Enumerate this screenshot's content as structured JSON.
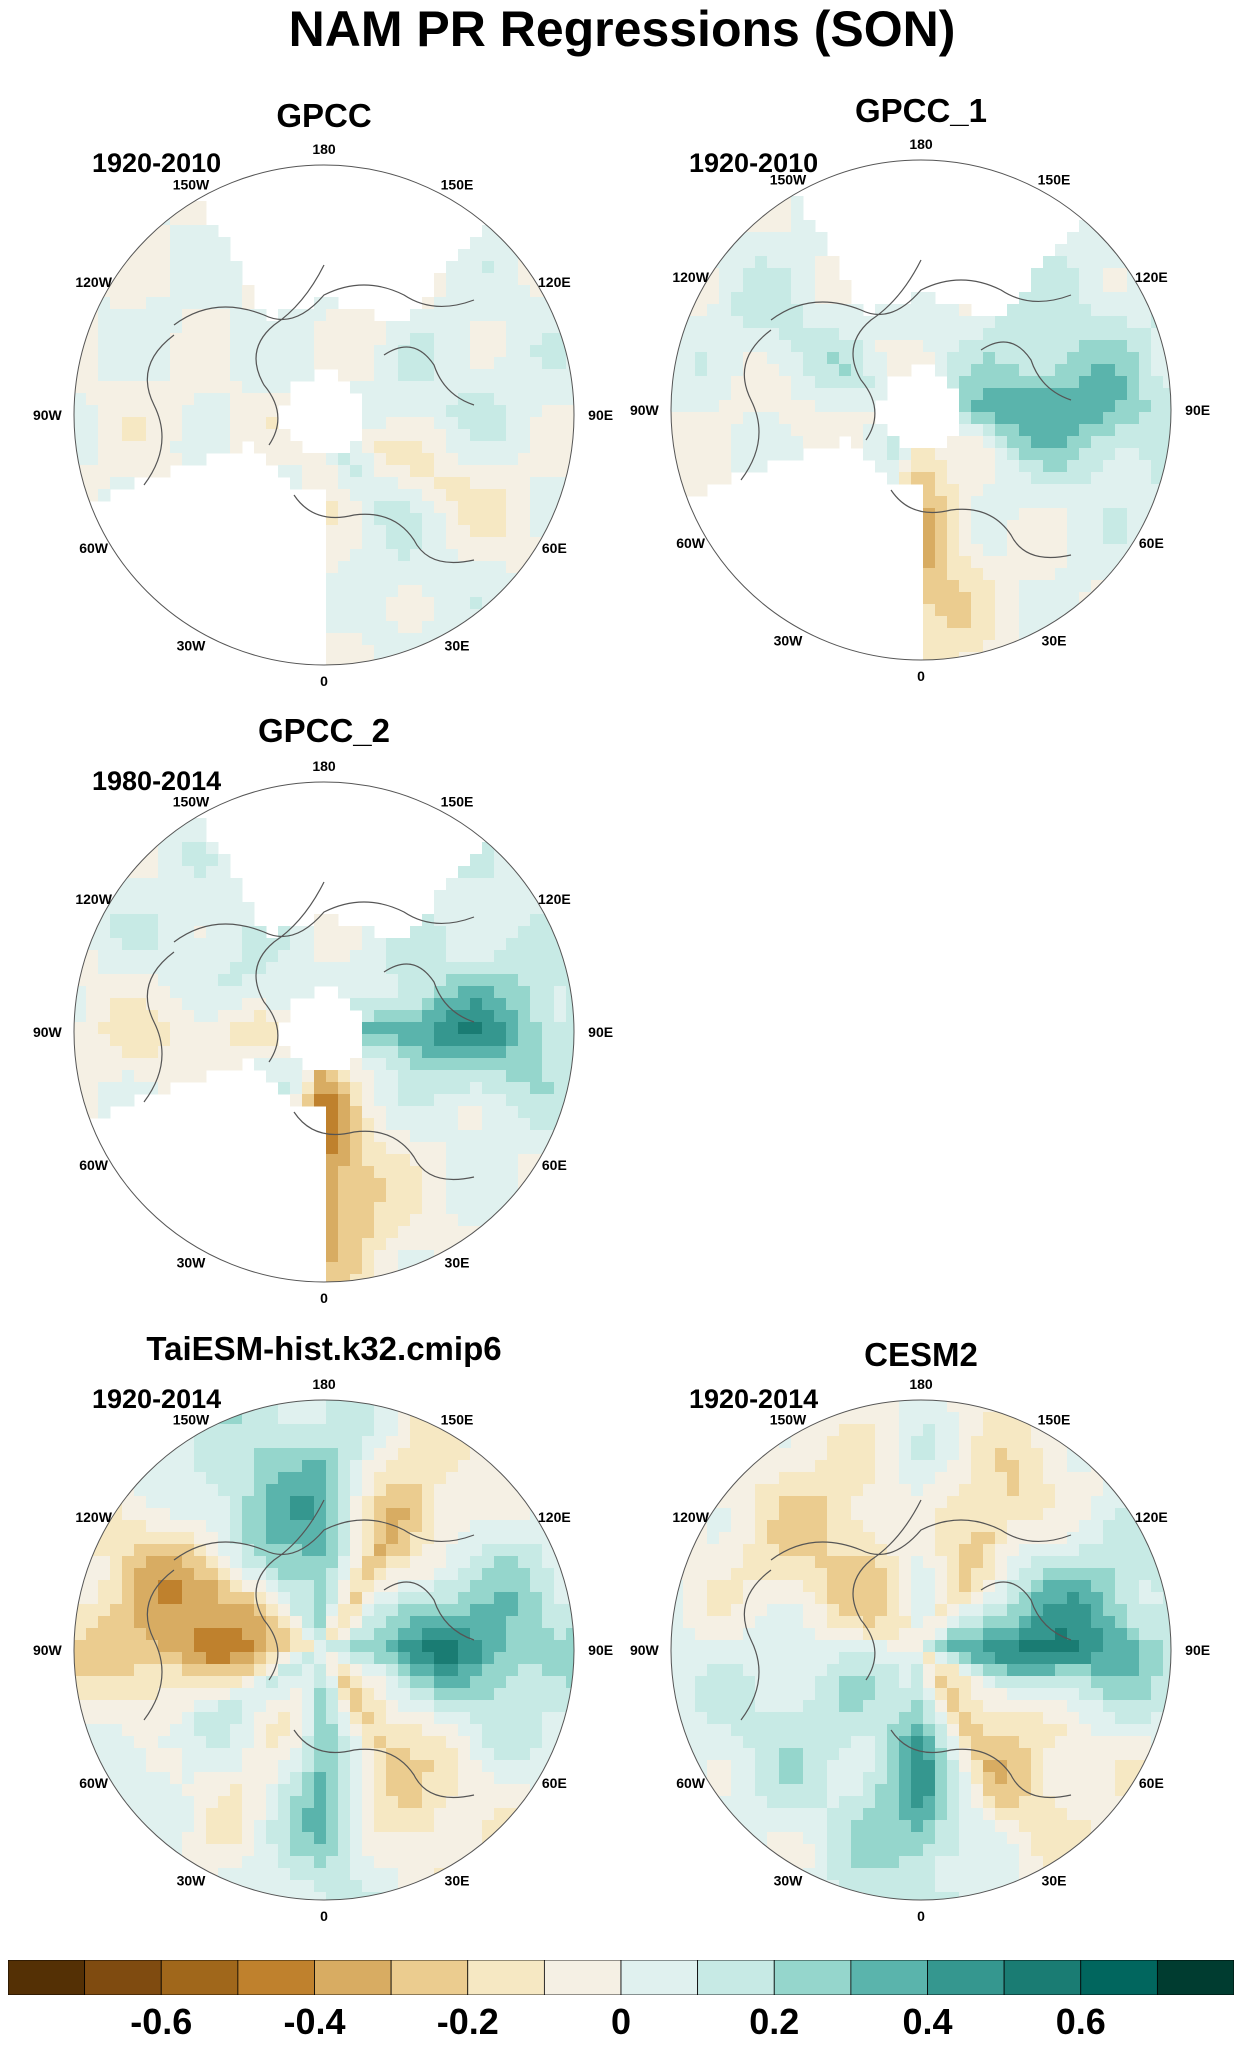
{
  "figure": {
    "title": "NAM PR Regressions (SON)"
  },
  "lon_labels": [
    "180",
    "150E",
    "120E",
    "90E",
    "60E",
    "30E",
    "0",
    "30W",
    "60W",
    "90W",
    "120W",
    "150W"
  ],
  "colorbar": {
    "colors": [
      "#543005",
      "#7f4b10",
      "#a0671b",
      "#bf812d",
      "#d8ac62",
      "#ebcc8f",
      "#f6e8c3",
      "#f5f0e4",
      "#e0f1ef",
      "#c7eae5",
      "#95d6cc",
      "#5ab4ac",
      "#35978f",
      "#1a7c73",
      "#01665e",
      "#003c30"
    ],
    "ticks": [
      "-0.6",
      "-0.4",
      "-0.2",
      "0",
      "0.2",
      "0.4",
      "0.6"
    ]
  },
  "panels": [
    {
      "title": "GPCC",
      "period": "1920-2010",
      "type": "observed",
      "pattern": [
        0.02,
        -0.02,
        0.05,
        0.08,
        -0.1,
        0.1,
        -0.05,
        0.02,
        0.0,
        -0.03,
        0.02,
        0.0
      ]
    },
    {
      "title": "GPCC_1",
      "period": "1920-2010",
      "type": "observed",
      "pattern": [
        0.02,
        0.05,
        0.15,
        0.35,
        0.05,
        0.0,
        -0.3,
        0.05,
        0.02,
        -0.02,
        0.12,
        0.02
      ]
    },
    {
      "title": "GPCC_2",
      "period": "1980-2014",
      "type": "observed",
      "pattern": [
        0.03,
        0.05,
        0.1,
        0.4,
        0.05,
        -0.05,
        -0.4,
        0.05,
        0.02,
        -0.12,
        0.1,
        0.03
      ]
    },
    {
      "title": "TaiESM-hist.k32.cmip6",
      "period": "1920-2014",
      "type": "model",
      "pattern": [
        0.3,
        -0.3,
        0.15,
        0.4,
        0.05,
        -0.25,
        0.3,
        -0.1,
        0.1,
        -0.35,
        -0.3,
        0.25
      ]
    },
    {
      "title": "CESM2",
      "period": "1920-2014",
      "type": "model",
      "pattern": [
        0.05,
        -0.25,
        0.2,
        0.45,
        -0.1,
        -0.2,
        0.35,
        0.1,
        0.15,
        0.05,
        -0.15,
        -0.2
      ]
    }
  ]
}
